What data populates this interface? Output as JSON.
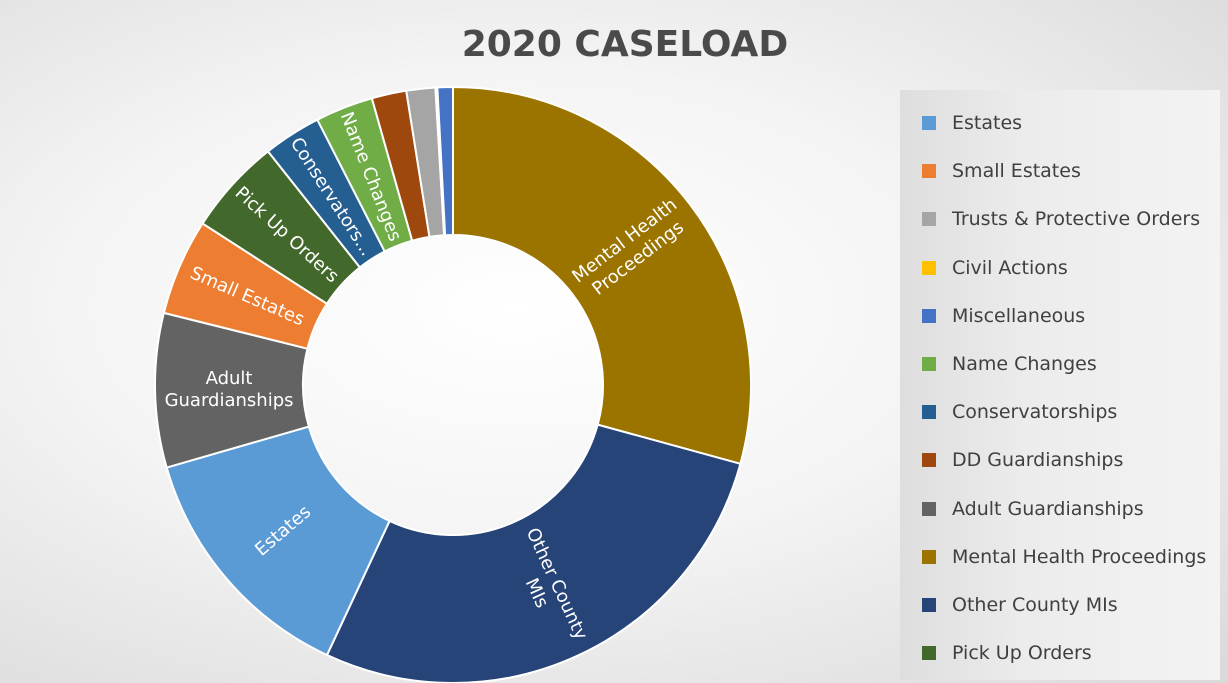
{
  "chart_data": {
    "type": "pie",
    "title": "2020 CASELOAD",
    "donut": true,
    "legend_position": "right",
    "slices": [
      {
        "name": "Mental Health Proceedings",
        "value": 28.0,
        "color": "#9b7400",
        "label": [
          "Mental Health",
          "Proceedings"
        ]
      },
      {
        "name": "Other County MIs",
        "value": 26.5,
        "color": "#264478",
        "label": [
          "Other County",
          "MIs"
        ]
      },
      {
        "name": "Estates",
        "value": 13.0,
        "color": "#5b9bd5",
        "label": [
          "Estates"
        ]
      },
      {
        "name": "Adult Guardianships",
        "value": 8.0,
        "color": "#636363",
        "label": [
          "Adult",
          "Guardianships"
        ]
      },
      {
        "name": "Small Estates",
        "value": 5.0,
        "color": "#ed7d31",
        "label": [
          "Small Estates"
        ]
      },
      {
        "name": "Pick Up Orders",
        "value": 5.0,
        "color": "#43682b",
        "label": [
          "Pick Up Orders"
        ]
      },
      {
        "name": "Conservatorships",
        "value": 3.0,
        "color": "#255e91",
        "label": [
          "Conservators..."
        ]
      },
      {
        "name": "Name Changes",
        "value": 3.0,
        "color": "#70ad47",
        "label": [
          "Name Changes"
        ]
      },
      {
        "name": "DD Guardianships",
        "value": 1.8,
        "color": "#9e480e",
        "label": []
      },
      {
        "name": "Trusts & Protective Orders",
        "value": 1.5,
        "color": "#a5a5a5",
        "label": []
      },
      {
        "name": "Civil Actions",
        "value": 0.1,
        "color": "#ffc000",
        "label": []
      },
      {
        "name": "Miscellaneous",
        "value": 0.8,
        "color": "#4472c4",
        "label": []
      }
    ],
    "legend": [
      {
        "name": "Estates",
        "color": "#5b9bd5"
      },
      {
        "name": "Small Estates",
        "color": "#ed7d31"
      },
      {
        "name": "Trusts & Protective Orders",
        "color": "#a5a5a5"
      },
      {
        "name": "Civil Actions",
        "color": "#ffc000"
      },
      {
        "name": "Miscellaneous",
        "color": "#4472c4"
      },
      {
        "name": "Name Changes",
        "color": "#70ad47"
      },
      {
        "name": "Conservatorships",
        "color": "#255e91"
      },
      {
        "name": "DD Guardianships",
        "color": "#9e480e"
      },
      {
        "name": "Adult Guardianships",
        "color": "#636363"
      },
      {
        "name": "Mental Health Proceedings",
        "color": "#9b7400"
      },
      {
        "name": "Other County MIs",
        "color": "#264478"
      },
      {
        "name": "Pick Up Orders",
        "color": "#43682b"
      }
    ]
  }
}
